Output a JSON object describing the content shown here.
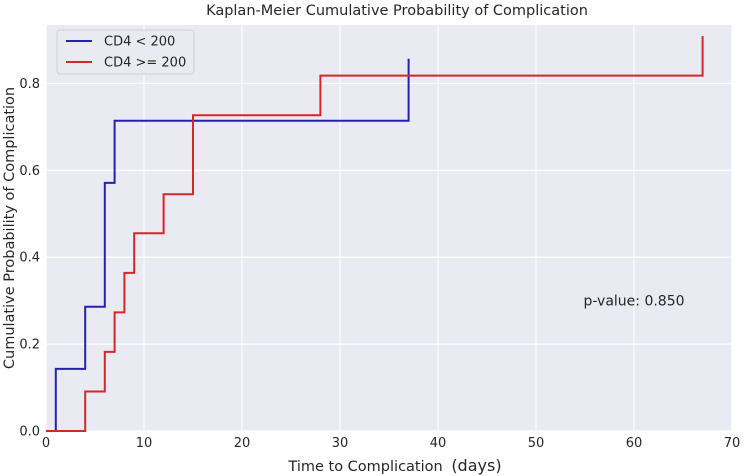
{
  "chart_data": {
    "type": "line",
    "step": true,
    "title": "Kaplan-Meier Cumulative Probability of Complication",
    "xlabel": "Time to Complication",
    "xlabel_unit": "(days)",
    "ylabel": "Cumulative Probability of Complication",
    "xlim": [
      0,
      70
    ],
    "ylim": [
      0,
      0.9
    ],
    "xticks": [
      0,
      10,
      20,
      30,
      40,
      50,
      60,
      70
    ],
    "xtick_labels": [
      "0",
      "10",
      "20",
      "30",
      "40",
      "50",
      "60",
      "70"
    ],
    "yticks": [
      0.0,
      0.2,
      0.4,
      0.6,
      0.8
    ],
    "ytick_labels": [
      "0.0",
      "0.2",
      "0.4",
      "0.6",
      "0.8"
    ],
    "grid": true,
    "legend_position": "top-left",
    "series": [
      {
        "name": "CD4 < 200",
        "color": "#2222b0",
        "x": [
          1,
          1,
          4,
          4,
          6,
          6,
          7,
          7,
          37,
          37
        ],
        "y": [
          0,
          0.143,
          0.143,
          0.286,
          0.286,
          0.571,
          0.571,
          0.714,
          0.714,
          0.857
        ]
      },
      {
        "name": "CD4 >= 200",
        "color": "#d62728",
        "x": [
          4,
          4,
          6,
          6,
          7,
          7,
          8,
          8,
          9,
          9,
          12,
          12,
          15,
          15,
          28,
          28,
          67,
          67
        ],
        "y": [
          0,
          0.091,
          0.091,
          0.182,
          0.182,
          0.273,
          0.273,
          0.364,
          0.364,
          0.455,
          0.455,
          0.545,
          0.545,
          0.727,
          0.727,
          0.818,
          0.818,
          0.909
        ]
      }
    ],
    "annotations": [
      {
        "text": "p-value: 0.850",
        "x": 60,
        "y": 0.3
      }
    ]
  }
}
